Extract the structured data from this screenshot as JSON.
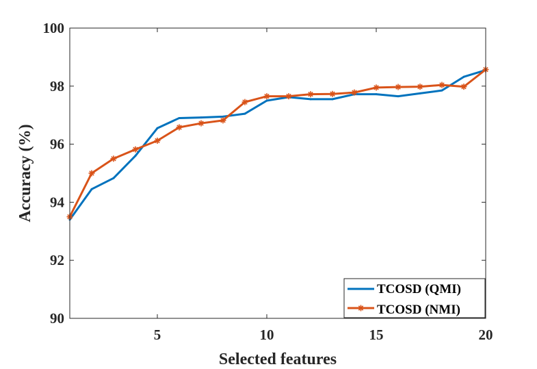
{
  "chart_data": {
    "type": "line",
    "title": "",
    "xlabel": "Selected features",
    "ylabel": "Accuracy (%)",
    "xlim": [
      1,
      20
    ],
    "ylim": [
      90,
      100
    ],
    "xticks": [
      5,
      10,
      15,
      20
    ],
    "yticks": [
      90,
      92,
      94,
      96,
      98,
      100
    ],
    "grid": false,
    "legend_position": "bottom-right",
    "x": [
      1,
      2,
      3,
      4,
      5,
      6,
      7,
      8,
      9,
      10,
      11,
      12,
      13,
      14,
      15,
      16,
      17,
      18,
      19,
      20
    ],
    "series": [
      {
        "name": "TCOSD (QMI)",
        "color": "#0072BD",
        "marker": "none",
        "values": [
          93.4,
          94.45,
          94.83,
          95.6,
          96.55,
          96.9,
          96.92,
          96.95,
          97.05,
          97.5,
          97.62,
          97.55,
          97.55,
          97.72,
          97.72,
          97.65,
          97.75,
          97.85,
          98.32,
          98.55
        ]
      },
      {
        "name": "TCOSD (NMI)",
        "color": "#D95319",
        "marker": "star",
        "values": [
          93.5,
          95.0,
          95.5,
          95.82,
          96.12,
          96.58,
          96.72,
          96.82,
          97.45,
          97.65,
          97.65,
          97.72,
          97.73,
          97.78,
          97.95,
          97.97,
          97.98,
          98.04,
          97.98,
          98.57
        ]
      }
    ]
  }
}
